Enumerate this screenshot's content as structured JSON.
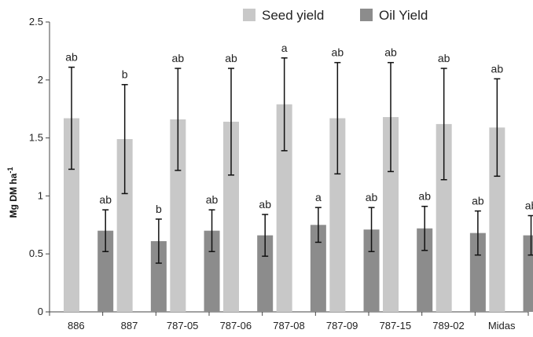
{
  "chart_data": {
    "type": "bar",
    "ylabel": "Mg DM ha",
    "ylabel_superscript": "-1",
    "ylim": [
      0,
      2.5
    ],
    "yticks": [
      "0",
      "0.5",
      "1",
      "1.5",
      "2",
      "2.5"
    ],
    "legend_position": "top-right",
    "categories": [
      "886",
      "887",
      "787-05",
      "787-06",
      "787-08",
      "787-09",
      "787-15",
      "789-02",
      "Midas"
    ],
    "series": [
      {
        "name": "Seed yield",
        "color": "#c8c8c8",
        "values": [
          1.67,
          1.49,
          1.66,
          1.64,
          1.79,
          1.67,
          1.68,
          1.62,
          1.59
        ],
        "error": [
          0.44,
          0.47,
          0.44,
          0.46,
          0.4,
          0.48,
          0.47,
          0.48,
          0.42
        ],
        "labels": [
          "ab",
          "b",
          "ab",
          "ab",
          "a",
          "ab",
          "ab",
          "ab",
          "ab"
        ]
      },
      {
        "name": "Oil Yield",
        "color": "#8c8c8c",
        "values": [
          0.7,
          0.61,
          0.7,
          0.66,
          0.75,
          0.71,
          0.72,
          0.68,
          0.66
        ],
        "error": [
          0.18,
          0.19,
          0.18,
          0.18,
          0.15,
          0.19,
          0.19,
          0.19,
          0.17
        ],
        "labels": [
          "ab",
          "b",
          "ab",
          "ab",
          "a",
          "ab",
          "ab",
          "ab",
          "ab"
        ]
      }
    ]
  }
}
